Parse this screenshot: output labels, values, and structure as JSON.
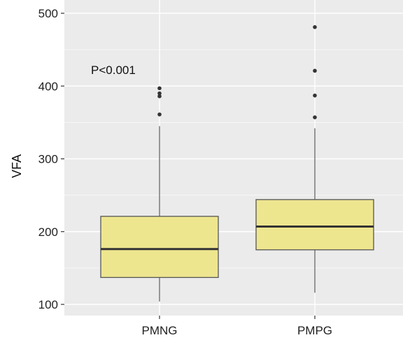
{
  "chart_data": {
    "type": "box",
    "ylabel": "VFA",
    "xlabel": "",
    "ylim": [
      95,
      505
    ],
    "yticks": [
      100,
      200,
      300,
      400,
      500
    ],
    "categories": [
      "PMNG",
      "PMPG"
    ],
    "boxes": [
      {
        "category": "PMNG",
        "whisker_low": 104,
        "q1": 137,
        "median": 176,
        "q3": 221,
        "whisker_high": 345,
        "outliers": [
          361,
          386,
          390,
          397
        ]
      },
      {
        "category": "PMPG",
        "whisker_low": 116,
        "q1": 175,
        "median": 207,
        "q3": 244,
        "whisker_high": 342,
        "outliers": [
          357,
          387,
          421,
          481
        ]
      }
    ],
    "annotation": "P<0.001",
    "grid": true,
    "colors": {
      "panel_background": "#ebebeb",
      "grid": "#ffffff",
      "box_fill": "#eee68f",
      "box_border": "#555555",
      "median": "#333333",
      "whisker": "#7f7f7f",
      "outlier": "#333333"
    }
  }
}
